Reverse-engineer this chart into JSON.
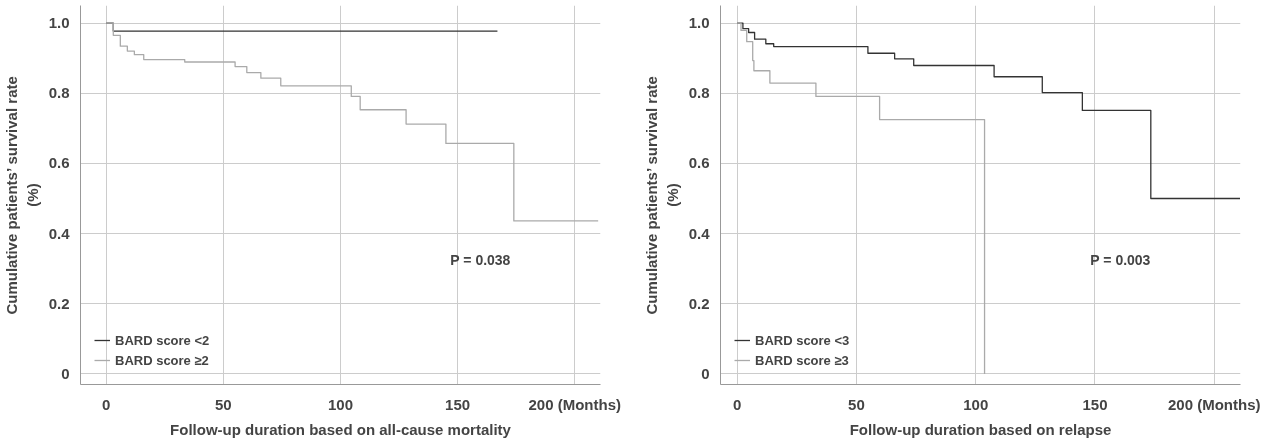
{
  "chart_data": [
    {
      "type": "step",
      "xlabel": "Follow-up duration based on all-cause mortality",
      "ylabel": "Cumulative patients’ survival rate\n(%)",
      "xlim": [
        -11,
        211
      ],
      "ylim": [
        -0.03,
        1.05
      ],
      "xticks": [
        0,
        50,
        100,
        150,
        {
          "value": 200,
          "label": "200 (Months)"
        }
      ],
      "yticks": [
        0,
        0.2,
        0.4,
        0.6,
        0.8,
        {
          "value": 1.0,
          "label": "1.0"
        }
      ],
      "grid": true,
      "legend": "bottom left",
      "annotations": [
        "P = 0.038"
      ],
      "series": [
        {
          "name": "BARD score <2",
          "color": "#333333",
          "x": [
            0,
            3,
            167
          ],
          "values": [
            1.0,
            0.977,
            0.977
          ]
        },
        {
          "name": "BARD score ≥2",
          "color": "#aaaaaa",
          "x": [
            0,
            3,
            6,
            9,
            12,
            16,
            33.5,
            55,
            60,
            66,
            74.5,
            104.6,
            108.4,
            128,
            145,
            174,
            210
          ],
          "values": [
            1.0,
            0.965,
            0.934,
            0.92,
            0.91,
            0.896,
            0.889,
            0.876,
            0.859,
            0.843,
            0.821,
            0.791,
            0.753,
            0.712,
            0.657,
            0.436,
            0.436
          ]
        }
      ]
    },
    {
      "type": "step",
      "xlabel": "Follow-up duration based on relapse",
      "ylabel": "Cumulative patients’ survival rate\n(%)",
      "xlim": [
        -7,
        211
      ],
      "ylim": [
        -0.03,
        1.05
      ],
      "xticks": [
        0,
        50,
        100,
        150,
        {
          "value": 200,
          "label": "200 (Months)"
        }
      ],
      "yticks": [
        0,
        0.2,
        0.4,
        0.6,
        0.8,
        {
          "value": 1.0,
          "label": "1.0"
        }
      ],
      "grid": true,
      "legend": "bottom left",
      "annotations": [
        "P = 0.003"
      ],
      "series": [
        {
          "name": "BARD score <3",
          "color": "#333333",
          "x": [
            0,
            2.4,
            4.8,
            7.3,
            12,
            15.3,
            54.8,
            66,
            74,
            107.7,
            127.9,
            144.7,
            173.4,
            210.8
          ],
          "values": [
            1.0,
            0.984,
            0.973,
            0.954,
            0.941,
            0.933,
            0.914,
            0.898,
            0.879,
            0.847,
            0.802,
            0.751,
            0.5,
            0.5
          ]
        },
        {
          "name": "BARD score ≥3",
          "color": "#aaaaaa",
          "x": [
            0,
            1.6,
            4,
            6.5,
            7,
            13.7,
            33,
            59.7,
            103.7
          ],
          "values": [
            1.0,
            0.979,
            0.947,
            0.893,
            0.864,
            0.829,
            0.791,
            0.725,
            0
          ]
        }
      ]
    }
  ]
}
